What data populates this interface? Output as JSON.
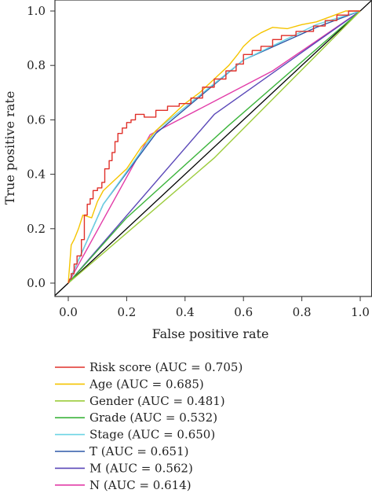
{
  "chart_data": {
    "type": "line",
    "xlabel": "False positive rate",
    "ylabel": "True positive rate",
    "xlim": [
      0,
      1
    ],
    "ylim": [
      0,
      1
    ],
    "x_ticks": [
      "0.0",
      "0.2",
      "0.4",
      "0.6",
      "0.8",
      "1.0"
    ],
    "y_ticks": [
      "0.0",
      "0.2",
      "0.4",
      "0.6",
      "0.8",
      "1.0"
    ],
    "grid": false,
    "legend_position": "bottom",
    "reference_line": {
      "x": [
        0,
        1
      ],
      "y": [
        0,
        1
      ],
      "color": "#000000"
    },
    "series": [
      {
        "name": "Risk score (AUC = 0.705)",
        "color": "#e0302a",
        "x": [
          0,
          0.005,
          0.01,
          0.01,
          0.02,
          0.02,
          0.03,
          0.03,
          0.045,
          0.045,
          0.055,
          0.055,
          0.065,
          0.065,
          0.075,
          0.075,
          0.085,
          0.085,
          0.1,
          0.1,
          0.115,
          0.115,
          0.125,
          0.125,
          0.14,
          0.14,
          0.15,
          0.15,
          0.16,
          0.16,
          0.17,
          0.17,
          0.185,
          0.185,
          0.2,
          0.2,
          0.215,
          0.215,
          0.23,
          0.23,
          0.26,
          0.26,
          0.3,
          0.3,
          0.34,
          0.34,
          0.38,
          0.38,
          0.42,
          0.42,
          0.46,
          0.46,
          0.5,
          0.5,
          0.54,
          0.54,
          0.575,
          0.575,
          0.6,
          0.6,
          0.63,
          0.63,
          0.66,
          0.66,
          0.7,
          0.7,
          0.73,
          0.73,
          0.78,
          0.78,
          0.84,
          0.84,
          0.88,
          0.88,
          0.92,
          0.92,
          0.96,
          0.96,
          1.0
        ],
        "y": [
          0,
          0.015,
          0.015,
          0.035,
          0.035,
          0.07,
          0.07,
          0.1,
          0.1,
          0.16,
          0.16,
          0.25,
          0.25,
          0.29,
          0.29,
          0.31,
          0.31,
          0.34,
          0.34,
          0.35,
          0.35,
          0.37,
          0.37,
          0.42,
          0.42,
          0.45,
          0.45,
          0.48,
          0.48,
          0.52,
          0.52,
          0.55,
          0.55,
          0.57,
          0.57,
          0.59,
          0.59,
          0.6,
          0.6,
          0.62,
          0.62,
          0.61,
          0.61,
          0.635,
          0.635,
          0.65,
          0.65,
          0.66,
          0.66,
          0.68,
          0.68,
          0.72,
          0.72,
          0.75,
          0.75,
          0.78,
          0.78,
          0.805,
          0.805,
          0.84,
          0.84,
          0.855,
          0.855,
          0.87,
          0.87,
          0.895,
          0.895,
          0.91,
          0.91,
          0.925,
          0.925,
          0.945,
          0.945,
          0.965,
          0.965,
          0.985,
          0.985,
          1.0,
          1.0
        ]
      },
      {
        "name": "Age (AUC = 0.685)",
        "color": "#f5c400",
        "x": [
          0,
          0.01,
          0.01,
          0.02,
          0.02,
          0.035,
          0.035,
          0.05,
          0.05,
          0.08,
          0.08,
          0.1,
          0.12,
          0.16,
          0.2,
          0.25,
          0.3,
          0.35,
          0.4,
          0.45,
          0.5,
          0.55,
          0.58,
          0.6,
          0.63,
          0.66,
          0.7,
          0.75,
          0.8,
          0.85,
          0.9,
          0.95,
          1.0
        ],
        "y": [
          0,
          0.14,
          0.14,
          0.16,
          0.16,
          0.2,
          0.2,
          0.25,
          0.25,
          0.24,
          0.24,
          0.3,
          0.34,
          0.38,
          0.42,
          0.5,
          0.56,
          0.61,
          0.66,
          0.7,
          0.75,
          0.8,
          0.84,
          0.87,
          0.9,
          0.92,
          0.94,
          0.935,
          0.95,
          0.96,
          0.98,
          1.0,
          1.0
        ]
      },
      {
        "name": "Gender (AUC = 0.481)",
        "color": "#9ccc3c",
        "x": [
          0,
          0.5,
          1.0
        ],
        "y": [
          0,
          0.46,
          1.0
        ]
      },
      {
        "name": "Grade (AUC = 0.532)",
        "color": "#3cb43c",
        "x": [
          0,
          0.2,
          0.55,
          0.85,
          1.0
        ],
        "y": [
          0,
          0.24,
          0.58,
          0.86,
          1.0
        ]
      },
      {
        "name": "Stage (AUC = 0.650)",
        "color": "#6cd4e4",
        "x": [
          0,
          0.12,
          0.3,
          0.6,
          0.85,
          1.0
        ],
        "y": [
          0,
          0.29,
          0.56,
          0.82,
          0.95,
          1.0
        ]
      },
      {
        "name": "T (AUC = 0.651)",
        "color": "#2e58a8",
        "x": [
          0,
          0.12,
          0.3,
          0.6,
          0.85,
          1.0
        ],
        "y": [
          0,
          0.29,
          0.55,
          0.82,
          0.94,
          1.0
        ]
      },
      {
        "name": "M (AUC = 0.562)",
        "color": "#5a48b8",
        "x": [
          0,
          0.5,
          1.0
        ],
        "y": [
          0,
          0.62,
          1.0
        ]
      },
      {
        "name": "N (AUC = 0.614)",
        "color": "#e23ca8",
        "x": [
          0,
          0.28,
          0.7,
          1.0
        ],
        "y": [
          0,
          0.545,
          0.78,
          1.0
        ]
      }
    ]
  }
}
